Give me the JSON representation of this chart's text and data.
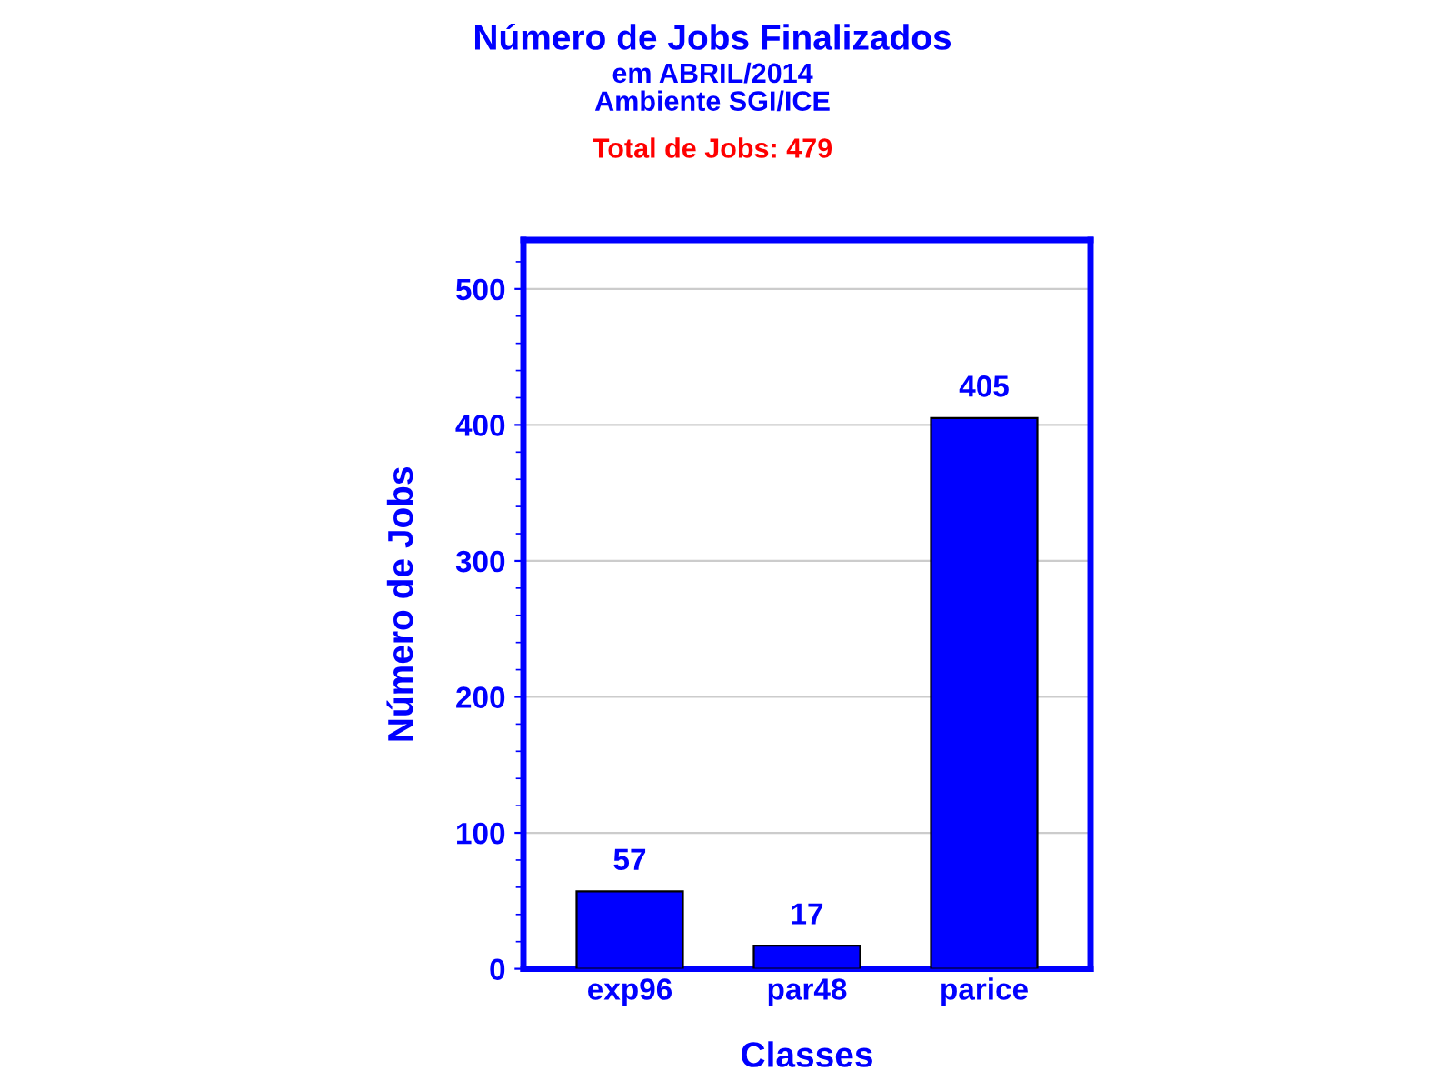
{
  "chart_data": {
    "type": "bar",
    "title": "Número de Jobs Finalizados",
    "subtitle": "em ABRIL/2014\nAmbiente SGI/ICE",
    "annotations": [
      "Total de Jobs: 479"
    ],
    "xlabel": "Classes",
    "ylabel": "Número de Jobs",
    "categories": [
      "exp96",
      "par48",
      "parice"
    ],
    "values": [
      57,
      17,
      405
    ],
    "color": "#0000ff",
    "ylim": [
      0,
      536
    ],
    "yticks": [
      0,
      100,
      200,
      300,
      400,
      500
    ],
    "grid": "y",
    "data_labels": true
  }
}
